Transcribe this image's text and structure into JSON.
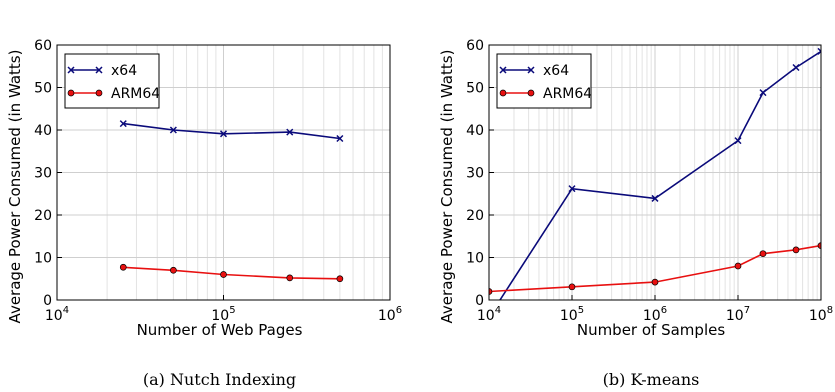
{
  "chart_data": [
    {
      "type": "line",
      "caption": "(a) Nutch Indexing",
      "xlabel": "Number of Web Pages",
      "ylabel": "Average Power Consumed (in Watts)",
      "xscale": "log",
      "xlim": [
        10000,
        1000000
      ],
      "ylim": [
        0,
        60
      ],
      "xticks": [
        {
          "v": 10000,
          "base": "10",
          "exp": "4"
        },
        {
          "v": 100000,
          "base": "10",
          "exp": "5"
        },
        {
          "v": 1000000,
          "base": "10",
          "exp": "6"
        }
      ],
      "yticks": [
        "0",
        "10",
        "20",
        "30",
        "40",
        "50",
        "60"
      ],
      "grid": true,
      "legend_position": "top-left",
      "series": [
        {
          "name": "x64",
          "marker": "x",
          "color": "#0a0a7a",
          "points": [
            [
              25000,
              41.5
            ],
            [
              50000,
              40.0
            ],
            [
              100000,
              39.1
            ],
            [
              250000,
              39.5
            ],
            [
              500000,
              38.0
            ]
          ]
        },
        {
          "name": "ARM64",
          "marker": "o",
          "color": "#e81010",
          "points": [
            [
              25000,
              7.7
            ],
            [
              50000,
              7.0
            ],
            [
              100000,
              6.0
            ],
            [
              250000,
              5.2
            ],
            [
              500000,
              5.0
            ]
          ]
        }
      ]
    },
    {
      "type": "line",
      "caption": "(b) K-means",
      "xlabel": "Number of Samples",
      "ylabel": "Average Power Consumed (in Watts)",
      "xscale": "log",
      "xlim": [
        10000,
        100000000
      ],
      "ylim": [
        0,
        60
      ],
      "xticks": [
        {
          "v": 10000,
          "base": "10",
          "exp": "4"
        },
        {
          "v": 100000,
          "base": "10",
          "exp": "5"
        },
        {
          "v": 1000000,
          "base": "10",
          "exp": "6"
        },
        {
          "v": 10000000,
          "base": "10",
          "exp": "7"
        },
        {
          "v": 100000000,
          "base": "10",
          "exp": "8"
        }
      ],
      "yticks": [
        "0",
        "10",
        "20",
        "30",
        "40",
        "50",
        "60"
      ],
      "grid": true,
      "legend_position": "top-left",
      "series": [
        {
          "name": "x64",
          "marker": "x",
          "color": "#0a0a7a",
          "points": [
            [
              10000,
              -4.0
            ],
            [
              100000,
              26.2
            ],
            [
              1000000,
              23.9
            ],
            [
              10000000,
              37.5
            ],
            [
              20000000,
              48.8
            ],
            [
              50000000,
              54.7
            ],
            [
              100000000,
              58.5
            ]
          ]
        },
        {
          "name": "ARM64",
          "marker": "o",
          "color": "#e81010",
          "points": [
            [
              10000,
              2.0
            ],
            [
              100000,
              3.1
            ],
            [
              1000000,
              4.2
            ],
            [
              10000000,
              8.0
            ],
            [
              20000000,
              10.9
            ],
            [
              50000000,
              11.8
            ],
            [
              100000000,
              12.8
            ]
          ]
        }
      ]
    }
  ]
}
